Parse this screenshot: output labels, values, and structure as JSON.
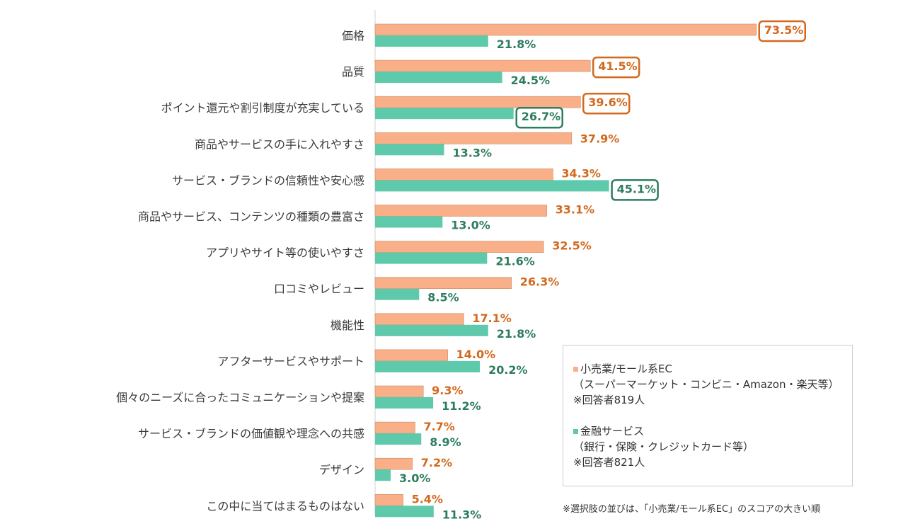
{
  "chart_data": {
    "type": "bar",
    "orientation": "horizontal",
    "categories": [
      "価格",
      "品質",
      "ポイント還元や割引制度が充実している",
      "商品やサービスの手に入れやすさ",
      "サービス・ブランドの信頼性や安心感",
      "商品やサービス、コンテンツの種類の豊富さ",
      "アプリやサイト等の使いやすさ",
      "口コミやレビュー",
      "機能性",
      "アフターサービスやサポート",
      "個々のニーズに合ったコミュニケーションや提案",
      "サービス・ブランドの価値観や理念への共感",
      "デザイン",
      "この中に当てはまるものはない"
    ],
    "series": [
      {
        "values": [
          73.5,
          41.5,
          39.6,
          37.9,
          34.3,
          33.1,
          32.5,
          26.3,
          17.1,
          14.0,
          9.3,
          7.7,
          7.2,
          5.4
        ],
        "labels": [
          "73.5%",
          "41.5%",
          "39.6%",
          "37.9%",
          "34.3%",
          "33.1%",
          "32.5%",
          "26.3%",
          "17.1%",
          "14.0%",
          "9.3%",
          "7.7%",
          "7.2%",
          "5.4%"
        ],
        "highlighted": [
          0,
          1,
          2
        ],
        "color": "#f9b088",
        "label_color": "#d2691e"
      },
      {
        "values": [
          21.8,
          24.5,
          26.7,
          13.3,
          45.1,
          13.0,
          21.6,
          8.5,
          21.8,
          20.2,
          11.2,
          8.9,
          3.0,
          11.3
        ],
        "labels": [
          "21.8%",
          "24.5%",
          "26.7%",
          "13.3%",
          "45.1%",
          "13.0%",
          "21.6%",
          "8.5%",
          "21.8%",
          "20.2%",
          "11.2%",
          "8.9%",
          "3.0%",
          "11.3%"
        ],
        "highlighted": [
          2,
          4
        ],
        "color": "#5ec9ab",
        "label_color": "#2e7d5e"
      }
    ],
    "xlim": [
      0,
      100
    ],
    "grid": false,
    "legend_position": "bottom-right"
  },
  "legend": {
    "a": {
      "line1": "小売業/モール系EC",
      "line2": "（スーパーマーケット・コンビニ・Amazon・楽天等）",
      "line3": "※回答者819人"
    },
    "b": {
      "line1": "金融サービス",
      "line2": "（銀行・保険・クレジットカード等）",
      "line3": "※回答者821人"
    }
  },
  "footnote": "※選択肢の並びは、「小売業/モール系EC」のスコアの大きい順"
}
